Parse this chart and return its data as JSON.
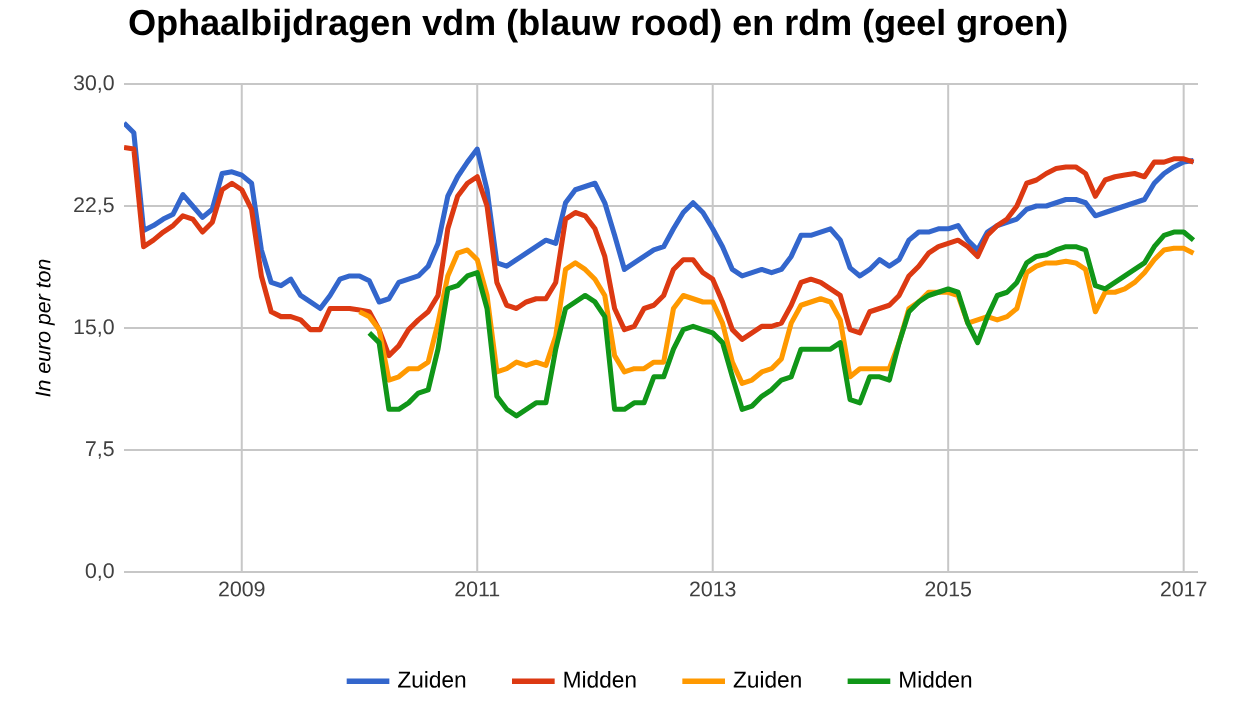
{
  "chart_data": {
    "type": "line",
    "title": "Ophaalbijdragen vdm (blauw rood) en rdm (geel groen)",
    "ylabel": "In euro per ton",
    "x": [
      "2008-01",
      "2008-02",
      "2008-03",
      "2008-04",
      "2008-05",
      "2008-06",
      "2008-07",
      "2008-08",
      "2008-09",
      "2008-10",
      "2008-11",
      "2008-12",
      "2009-01",
      "2009-02",
      "2009-03",
      "2009-04",
      "2009-05",
      "2009-06",
      "2009-07",
      "2009-08",
      "2009-09",
      "2009-10",
      "2009-11",
      "2009-12",
      "2010-01",
      "2010-02",
      "2010-03",
      "2010-04",
      "2010-05",
      "2010-06",
      "2010-07",
      "2010-08",
      "2010-09",
      "2010-10",
      "2010-11",
      "2010-12",
      "2011-01",
      "2011-02",
      "2011-03",
      "2011-04",
      "2011-05",
      "2011-06",
      "2011-07",
      "2011-08",
      "2011-09",
      "2011-10",
      "2011-11",
      "2011-12",
      "2012-01",
      "2012-02",
      "2012-03",
      "2012-04",
      "2012-05",
      "2012-06",
      "2012-07",
      "2012-08",
      "2012-09",
      "2012-10",
      "2012-11",
      "2012-12",
      "2013-01",
      "2013-02",
      "2013-03",
      "2013-04",
      "2013-05",
      "2013-06",
      "2013-07",
      "2013-08",
      "2013-09",
      "2013-10",
      "2013-11",
      "2013-12",
      "2014-01",
      "2014-02",
      "2014-03",
      "2014-04",
      "2014-05",
      "2014-06",
      "2014-07",
      "2014-08",
      "2014-09",
      "2014-10",
      "2014-11",
      "2014-12",
      "2015-01",
      "2015-02",
      "2015-03",
      "2015-04",
      "2015-05",
      "2015-06",
      "2015-07",
      "2015-08",
      "2015-09",
      "2015-10",
      "2015-11",
      "2015-12",
      "2016-01",
      "2016-02",
      "2016-03",
      "2016-04",
      "2016-05",
      "2016-06",
      "2016-07",
      "2016-08",
      "2016-09",
      "2016-10",
      "2016-11",
      "2016-12",
      "2017-01",
      "2017-02"
    ],
    "series": [
      {
        "name": "Zuiden",
        "color": "#3366cc",
        "values": [
          27.6,
          27.0,
          21.0,
          21.3,
          21.7,
          22.0,
          23.2,
          22.5,
          21.8,
          22.3,
          24.5,
          24.6,
          24.4,
          23.9,
          19.8,
          17.8,
          17.6,
          18.0,
          17.0,
          16.6,
          16.2,
          17.0,
          18.0,
          18.2,
          18.2,
          17.9,
          16.6,
          16.8,
          17.8,
          18.0,
          18.2,
          18.8,
          20.2,
          23.1,
          24.3,
          25.2,
          26.0,
          23.5,
          19.0,
          18.8,
          19.2,
          19.6,
          20.0,
          20.4,
          20.2,
          22.7,
          23.5,
          23.7,
          23.9,
          22.7,
          20.7,
          18.6,
          19.0,
          19.4,
          19.8,
          20.0,
          21.1,
          22.1,
          22.7,
          22.1,
          21.1,
          20.0,
          18.6,
          18.2,
          18.4,
          18.6,
          18.4,
          18.6,
          19.4,
          20.7,
          20.7,
          20.9,
          21.1,
          20.4,
          18.7,
          18.2,
          18.6,
          19.2,
          18.8,
          19.2,
          20.4,
          20.9,
          20.9,
          21.1,
          21.1,
          21.3,
          20.4,
          19.8,
          20.9,
          21.3,
          21.5,
          21.7,
          22.3,
          22.5,
          22.5,
          22.7,
          22.9,
          22.9,
          22.7,
          21.9,
          22.1,
          22.3,
          22.5,
          22.7,
          22.9,
          23.9,
          24.5,
          24.9,
          25.2,
          25.3
        ]
      },
      {
        "name": "Midden",
        "color": "#dc3912",
        "values": [
          26.1,
          26.0,
          20.0,
          20.4,
          20.9,
          21.3,
          21.9,
          21.7,
          20.9,
          21.5,
          23.5,
          23.9,
          23.5,
          22.3,
          18.2,
          16.0,
          15.7,
          15.7,
          15.5,
          14.9,
          14.9,
          16.2,
          16.2,
          16.2,
          16.1,
          16.0,
          14.9,
          13.3,
          13.9,
          14.9,
          15.5,
          16.0,
          17.0,
          21.1,
          23.1,
          23.9,
          24.3,
          22.5,
          17.8,
          16.4,
          16.2,
          16.6,
          16.8,
          16.8,
          17.8,
          21.7,
          22.1,
          21.9,
          21.1,
          19.4,
          16.2,
          14.9,
          15.1,
          16.2,
          16.4,
          17.0,
          18.6,
          19.2,
          19.2,
          18.4,
          18.0,
          16.6,
          14.9,
          14.3,
          14.7,
          15.1,
          15.1,
          15.3,
          16.4,
          17.8,
          18.0,
          17.8,
          17.4,
          17.0,
          14.9,
          14.7,
          16.0,
          16.2,
          16.4,
          17.0,
          18.2,
          18.8,
          19.6,
          20.0,
          20.2,
          20.4,
          20.0,
          19.4,
          20.7,
          21.3,
          21.7,
          22.5,
          23.9,
          24.1,
          24.5,
          24.8,
          24.9,
          24.9,
          24.5,
          23.1,
          24.1,
          24.3,
          24.4,
          24.5,
          24.3,
          25.2,
          25.2,
          25.4,
          25.4,
          25.2
        ]
      },
      {
        "name": "Zuiden",
        "color": "#ff9900",
        "values": [
          null,
          null,
          null,
          null,
          null,
          null,
          null,
          null,
          null,
          null,
          null,
          null,
          null,
          null,
          null,
          null,
          null,
          null,
          null,
          null,
          null,
          null,
          null,
          null,
          16.0,
          15.7,
          14.9,
          11.8,
          12.0,
          12.5,
          12.5,
          12.9,
          15.3,
          18.2,
          19.6,
          19.8,
          19.2,
          17.0,
          12.3,
          12.5,
          12.9,
          12.7,
          12.9,
          12.7,
          14.5,
          18.6,
          19.0,
          18.6,
          18.0,
          17.0,
          13.3,
          12.3,
          12.5,
          12.5,
          12.9,
          12.9,
          16.2,
          17.0,
          16.8,
          16.6,
          16.6,
          15.3,
          12.9,
          11.6,
          11.8,
          12.3,
          12.5,
          13.1,
          15.3,
          16.4,
          16.6,
          16.8,
          16.6,
          15.5,
          12.0,
          12.5,
          12.5,
          12.5,
          12.5,
          14.1,
          16.2,
          16.6,
          17.2,
          17.2,
          17.2,
          17.0,
          15.3,
          15.5,
          15.7,
          15.5,
          15.7,
          16.2,
          18.4,
          18.8,
          19.0,
          19.0,
          19.1,
          19.0,
          18.6,
          16.0,
          17.2,
          17.2,
          17.4,
          17.8,
          18.4,
          19.2,
          19.8,
          19.9,
          19.9,
          19.6
        ]
      },
      {
        "name": "Midden",
        "color": "#109618",
        "values": [
          null,
          null,
          null,
          null,
          null,
          null,
          null,
          null,
          null,
          null,
          null,
          null,
          null,
          null,
          null,
          null,
          null,
          null,
          null,
          null,
          null,
          null,
          null,
          null,
          null,
          14.7,
          14.1,
          10.0,
          10.0,
          10.4,
          11.0,
          11.2,
          13.7,
          17.4,
          17.6,
          18.2,
          18.4,
          16.2,
          10.8,
          10.0,
          9.6,
          10.0,
          10.4,
          10.4,
          13.7,
          16.2,
          16.6,
          17.0,
          16.6,
          15.7,
          10.0,
          10.0,
          10.4,
          10.4,
          12.0,
          12.0,
          13.7,
          14.9,
          15.1,
          14.9,
          14.7,
          14.1,
          12.0,
          10.0,
          10.2,
          10.8,
          11.2,
          11.8,
          12.0,
          13.7,
          13.7,
          13.7,
          13.7,
          14.1,
          10.6,
          10.4,
          12.0,
          12.0,
          11.8,
          14.1,
          16.0,
          16.6,
          17.0,
          17.2,
          17.4,
          17.2,
          15.3,
          14.1,
          15.7,
          17.0,
          17.2,
          17.8,
          19.0,
          19.4,
          19.5,
          19.8,
          20.0,
          20.0,
          19.8,
          17.6,
          17.4,
          17.8,
          18.2,
          18.6,
          19.0,
          20.0,
          20.7,
          20.9,
          20.9,
          20.4
        ]
      }
    ],
    "xlim": [
      "2008-01",
      "2017-02-15"
    ],
    "xticks": [
      "2009",
      "2011",
      "2013",
      "2015",
      "2017"
    ],
    "ylim": [
      0,
      30
    ],
    "yticks": [
      {
        "value": 0,
        "label": "0,0"
      },
      {
        "value": 7.5,
        "label": "7,5"
      },
      {
        "value": 15,
        "label": "15,0"
      },
      {
        "value": 22.5,
        "label": "22,5"
      },
      {
        "value": 30,
        "label": "30,0"
      }
    ],
    "grid": true,
    "legend": "bottom"
  }
}
